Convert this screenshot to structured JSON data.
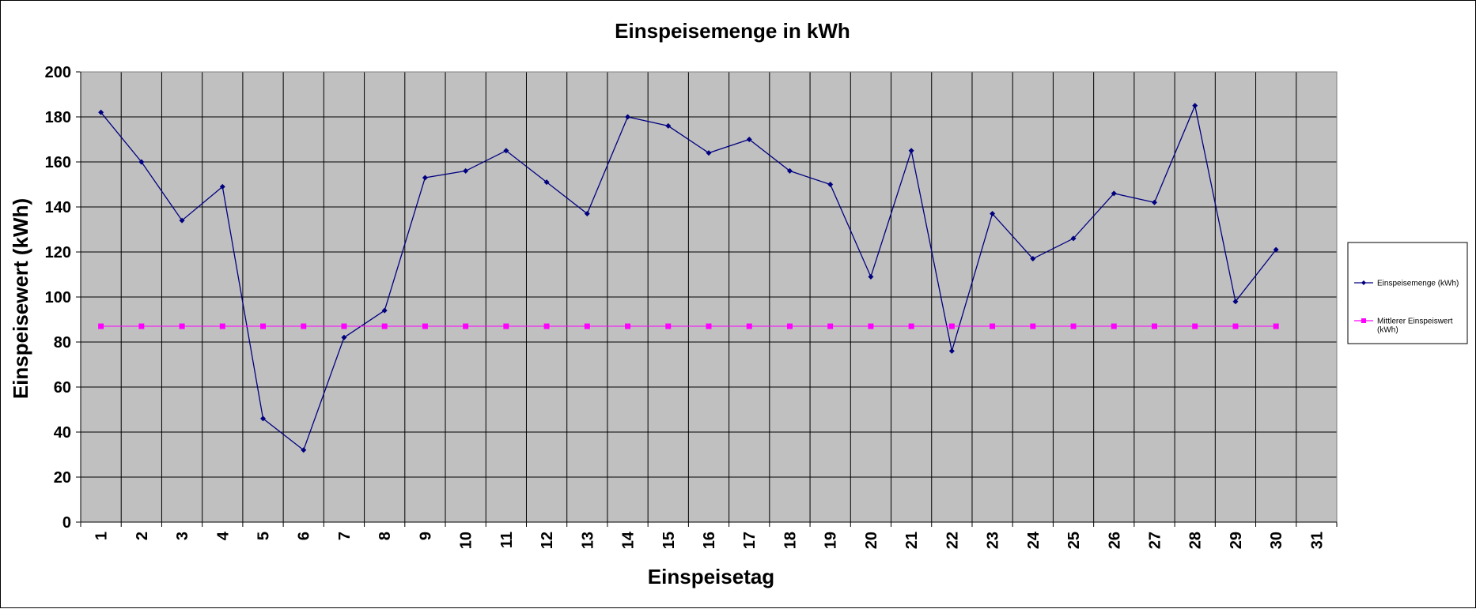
{
  "chart_data": {
    "type": "line",
    "title": "Einspeisemenge in kWh",
    "xlabel": "Einspeisetag",
    "ylabel": "Einspeisewert  (kWh)",
    "categories": [
      "1",
      "2",
      "3",
      "4",
      "5",
      "6",
      "7",
      "8",
      "9",
      "10",
      "11",
      "12",
      "13",
      "14",
      "15",
      "16",
      "17",
      "18",
      "19",
      "20",
      "21",
      "22",
      "23",
      "24",
      "25",
      "26",
      "27",
      "28",
      "29",
      "30",
      "31"
    ],
    "ylim": [
      0,
      200
    ],
    "yticks": [
      "0",
      "20",
      "40",
      "60",
      "80",
      "100",
      "120",
      "140",
      "160",
      "180",
      "200"
    ],
    "grid": true,
    "plot_background": "#c0c0c0",
    "legend_position": "right",
    "series": [
      {
        "name": "Einspeisemenge (kWh)",
        "color": "#000080",
        "marker": "diamond",
        "values": [
          182,
          160,
          134,
          149,
          46,
          32,
          82,
          94,
          153,
          156,
          165,
          151,
          137,
          180,
          176,
          164,
          170,
          156,
          150,
          109,
          165,
          76,
          137,
          117,
          126,
          146,
          142,
          185,
          98,
          121,
          null
        ]
      },
      {
        "name": "Mittlerer Einspeiswert (kWh)",
        "legend_lines": [
          "Mittlerer Einspeiswert",
          "(kWh)"
        ],
        "color": "#ff00ff",
        "marker": "square",
        "values": [
          87,
          87,
          87,
          87,
          87,
          87,
          87,
          87,
          87,
          87,
          87,
          87,
          87,
          87,
          87,
          87,
          87,
          87,
          87,
          87,
          87,
          87,
          87,
          87,
          87,
          87,
          87,
          87,
          87,
          87,
          null
        ]
      }
    ]
  }
}
